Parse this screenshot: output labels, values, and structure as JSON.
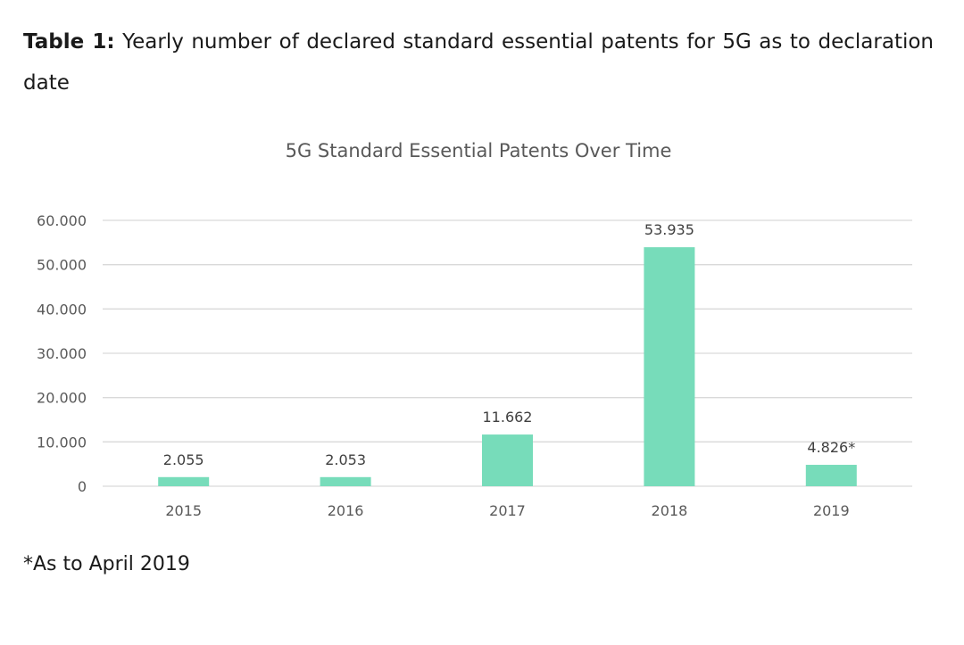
{
  "caption": {
    "label": "Table 1:",
    "text": "Yearly number of declared standard essential patents for 5G as to declaration date"
  },
  "footnote": "*As to April 2019",
  "colors": {
    "bar": "#77dcba",
    "grid": "#d9d9d9",
    "axis_text": "#595959",
    "title_text": "#595959",
    "label_text": "#404040"
  },
  "chart_data": {
    "type": "bar",
    "title": "5G Standard Essential Patents Over Time",
    "categories": [
      "2015",
      "2016",
      "2017",
      "2018",
      "2019"
    ],
    "values": [
      2055,
      2053,
      11662,
      53935,
      4826
    ],
    "data_labels": [
      "2.055",
      "2.053",
      "11.662",
      "53.935",
      "4.826*"
    ],
    "xlabel": "",
    "ylabel": "",
    "ylim": [
      0,
      60000
    ],
    "yticks": [
      0,
      10000,
      20000,
      30000,
      40000,
      50000,
      60000
    ],
    "ytick_labels": [
      "0",
      "10.000",
      "20.000",
      "30.000",
      "40.000",
      "50.000",
      "60.000"
    ],
    "grid": true,
    "legend": "none"
  }
}
